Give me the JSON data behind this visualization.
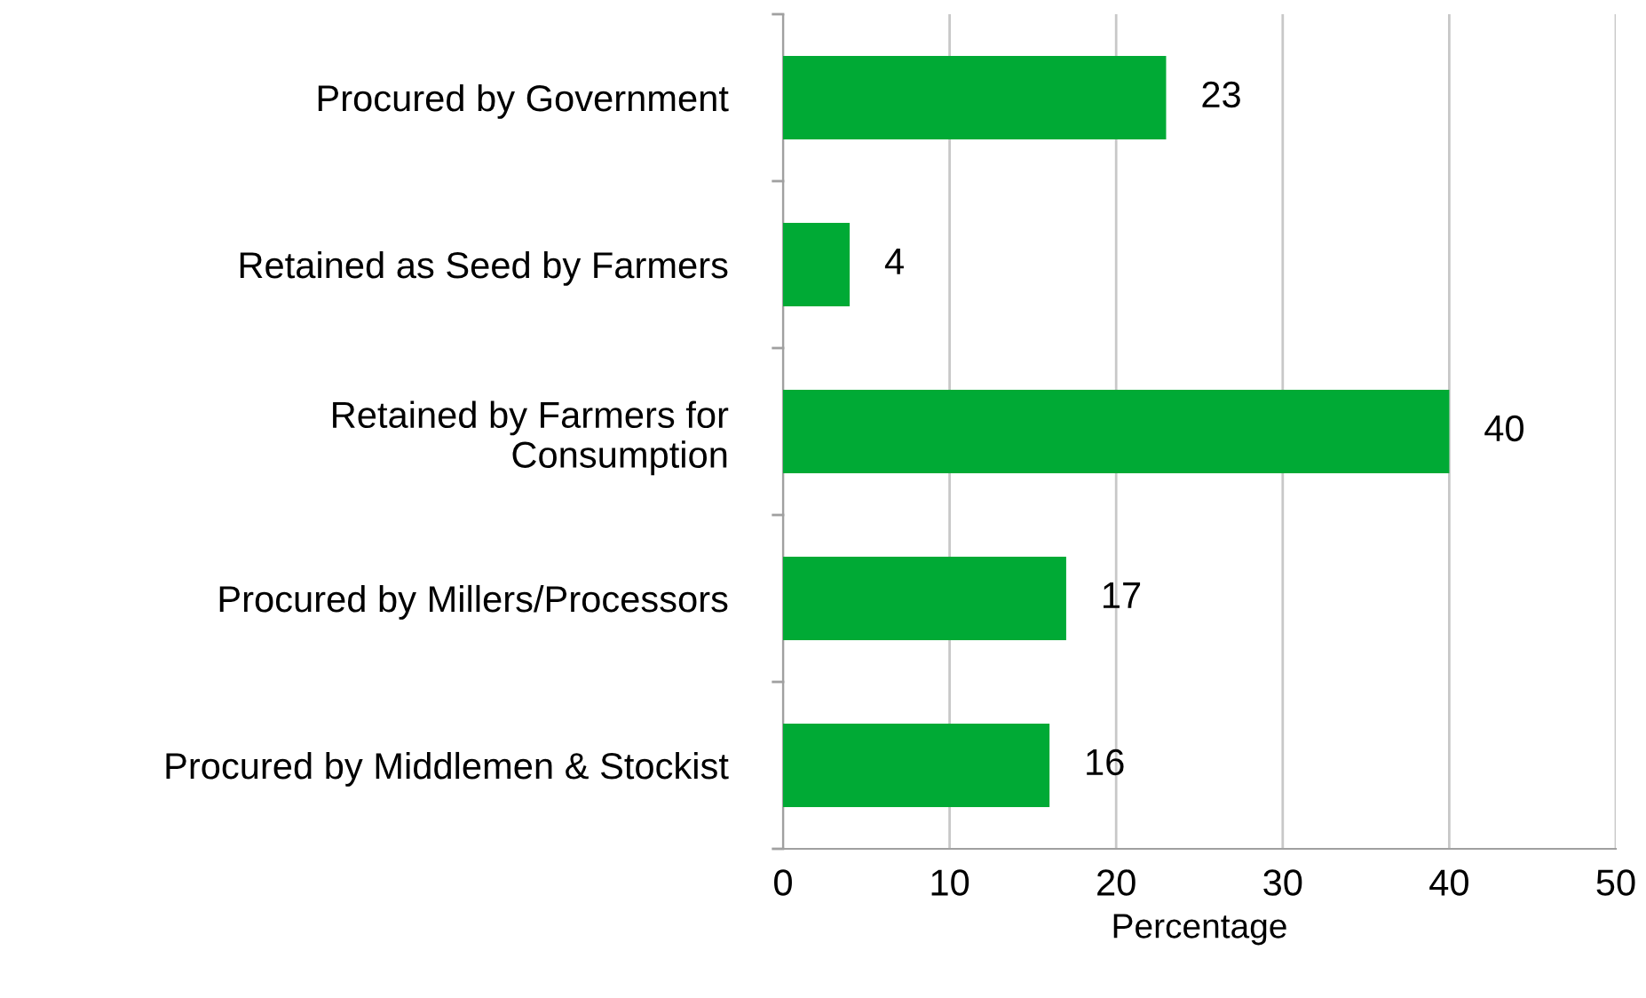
{
  "chart_data": {
    "type": "bar",
    "orientation": "horizontal",
    "xlabel": "Percentage",
    "categories": [
      "Procured by Government",
      "Retained as Seed by Farmers",
      "Retained by Farmers for\nConsumption",
      "Procured by Millers/Processors",
      "Procured by Middlemen & Stockist"
    ],
    "values": [
      23,
      4,
      40,
      17,
      16
    ],
    "color": "#00aa35",
    "data_labels": true,
    "xlim": [
      0,
      50
    ],
    "xticks": [
      0,
      10,
      20,
      30,
      40,
      50
    ],
    "grid": "x",
    "legend": false
  }
}
